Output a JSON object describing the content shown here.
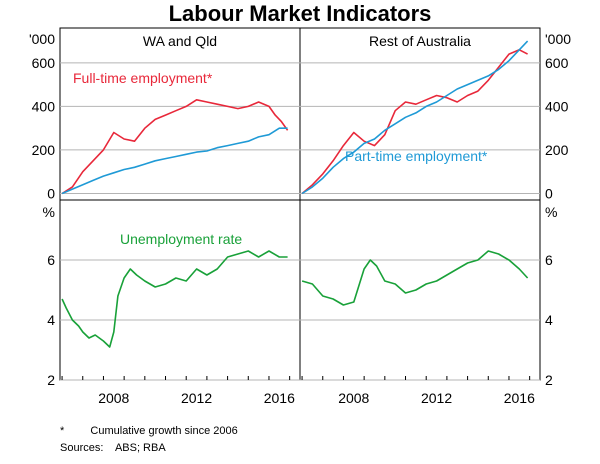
{
  "chart_data": {
    "type": "line",
    "title": "Labour Market Indicators",
    "top_unit": "'000",
    "bottom_unit": "%",
    "x_ticks": [
      "2008",
      "2012",
      "2016"
    ],
    "x_range": [
      2005.9,
      2017.5
    ],
    "top_ylim": [
      -30,
      760
    ],
    "top_yticks": [
      "0",
      "200",
      "400",
      "600"
    ],
    "bottom_ylim": [
      2,
      8
    ],
    "bottom_yticks": [
      "2",
      "4",
      "6"
    ],
    "panels": [
      {
        "title": "WA and Qld",
        "position": "top-left",
        "annotations": [
          {
            "text": "Full-time employment*",
            "color": "#e8283a"
          },
          {
            "text": "Unemployment rate",
            "color": "#19a139"
          }
        ]
      },
      {
        "title": "Rest of Australia",
        "position": "top-right",
        "annotations": [
          {
            "text": "Part-time employment*",
            "color": "#1f9ad6"
          }
        ]
      }
    ],
    "series": [
      {
        "name": "Full-time employment (WA and Qld)",
        "panel": "top-left",
        "color": "#e8283a",
        "x": [
          2006.0,
          2006.5,
          2007.0,
          2007.5,
          2008.0,
          2008.5,
          2009.0,
          2009.5,
          2010.0,
          2010.5,
          2011.0,
          2011.5,
          2012.0,
          2012.5,
          2013.0,
          2013.5,
          2014.0,
          2014.5,
          2015.0,
          2015.5,
          2016.0,
          2016.3,
          2016.6,
          2016.9
        ],
        "y": [
          0,
          30,
          100,
          150,
          200,
          280,
          250,
          240,
          300,
          340,
          360,
          380,
          400,
          430,
          420,
          410,
          400,
          390,
          400,
          420,
          400,
          360,
          330,
          290
        ]
      },
      {
        "name": "Part-time employment (WA and Qld)",
        "panel": "top-left",
        "color": "#1f9ad6",
        "x": [
          2006.0,
          2006.5,
          2007.0,
          2007.5,
          2008.0,
          2008.5,
          2009.0,
          2009.5,
          2010.0,
          2010.5,
          2011.0,
          2011.5,
          2012.0,
          2012.5,
          2013.0,
          2013.5,
          2014.0,
          2014.5,
          2015.0,
          2015.5,
          2016.0,
          2016.5,
          2016.9
        ],
        "y": [
          0,
          20,
          40,
          60,
          80,
          95,
          110,
          120,
          135,
          150,
          160,
          170,
          180,
          190,
          195,
          210,
          220,
          230,
          240,
          260,
          270,
          300,
          300
        ]
      },
      {
        "name": "Full-time employment (Rest of Australia)",
        "panel": "top-right",
        "color": "#e8283a",
        "x": [
          2006.0,
          2006.5,
          2007.0,
          2007.5,
          2008.0,
          2008.5,
          2009.0,
          2009.5,
          2010.0,
          2010.5,
          2011.0,
          2011.5,
          2012.0,
          2012.5,
          2013.0,
          2013.5,
          2014.0,
          2014.5,
          2015.0,
          2015.5,
          2016.0,
          2016.5,
          2016.9
        ],
        "y": [
          0,
          40,
          90,
          150,
          220,
          280,
          240,
          220,
          270,
          380,
          420,
          410,
          430,
          450,
          440,
          420,
          450,
          470,
          520,
          580,
          640,
          660,
          640
        ]
      },
      {
        "name": "Part-time employment (Rest of Australia)",
        "panel": "top-right",
        "color": "#1f9ad6",
        "x": [
          2006.0,
          2006.5,
          2007.0,
          2007.5,
          2008.0,
          2008.5,
          2009.0,
          2009.5,
          2010.0,
          2010.5,
          2011.0,
          2011.5,
          2012.0,
          2012.5,
          2013.0,
          2013.5,
          2014.0,
          2014.5,
          2015.0,
          2015.5,
          2016.0,
          2016.5,
          2016.9
        ],
        "y": [
          0,
          30,
          70,
          120,
          160,
          190,
          230,
          250,
          290,
          320,
          350,
          370,
          400,
          420,
          450,
          480,
          500,
          520,
          540,
          570,
          610,
          660,
          700
        ]
      },
      {
        "name": "Unemployment rate (WA and Qld)",
        "panel": "bottom-left",
        "color": "#19a139",
        "x": [
          2006.0,
          2006.2,
          2006.5,
          2006.8,
          2007.0,
          2007.3,
          2007.6,
          2008.0,
          2008.3,
          2008.5,
          2008.7,
          2009.0,
          2009.3,
          2009.6,
          2010.0,
          2010.5,
          2011.0,
          2011.5,
          2012.0,
          2012.5,
          2013.0,
          2013.5,
          2014.0,
          2014.5,
          2015.0,
          2015.5,
          2016.0,
          2016.5,
          2016.9
        ],
        "y": [
          4.7,
          4.4,
          4.0,
          3.8,
          3.6,
          3.4,
          3.5,
          3.3,
          3.1,
          3.6,
          4.8,
          5.4,
          5.7,
          5.5,
          5.3,
          5.1,
          5.2,
          5.4,
          5.3,
          5.7,
          5.5,
          5.7,
          6.1,
          6.2,
          6.3,
          6.1,
          6.3,
          6.1,
          6.1
        ]
      },
      {
        "name": "Unemployment rate (Rest of Australia)",
        "panel": "bottom-right",
        "color": "#19a139",
        "x": [
          2006.0,
          2006.5,
          2007.0,
          2007.5,
          2008.0,
          2008.5,
          2009.0,
          2009.3,
          2009.6,
          2010.0,
          2010.5,
          2011.0,
          2011.5,
          2012.0,
          2012.5,
          2013.0,
          2013.5,
          2014.0,
          2014.5,
          2015.0,
          2015.5,
          2016.0,
          2016.5,
          2016.9
        ],
        "y": [
          5.3,
          5.2,
          4.8,
          4.7,
          4.5,
          4.6,
          5.7,
          6.0,
          5.8,
          5.3,
          5.2,
          4.9,
          5.0,
          5.2,
          5.3,
          5.5,
          5.7,
          5.9,
          6.0,
          6.3,
          6.2,
          6.0,
          5.7,
          5.4
        ]
      }
    ]
  },
  "notes": {
    "footnote_marker": "*",
    "footnote": "Cumulative growth since 2006",
    "sources_label": "Sources:",
    "sources": "ABS; RBA"
  }
}
